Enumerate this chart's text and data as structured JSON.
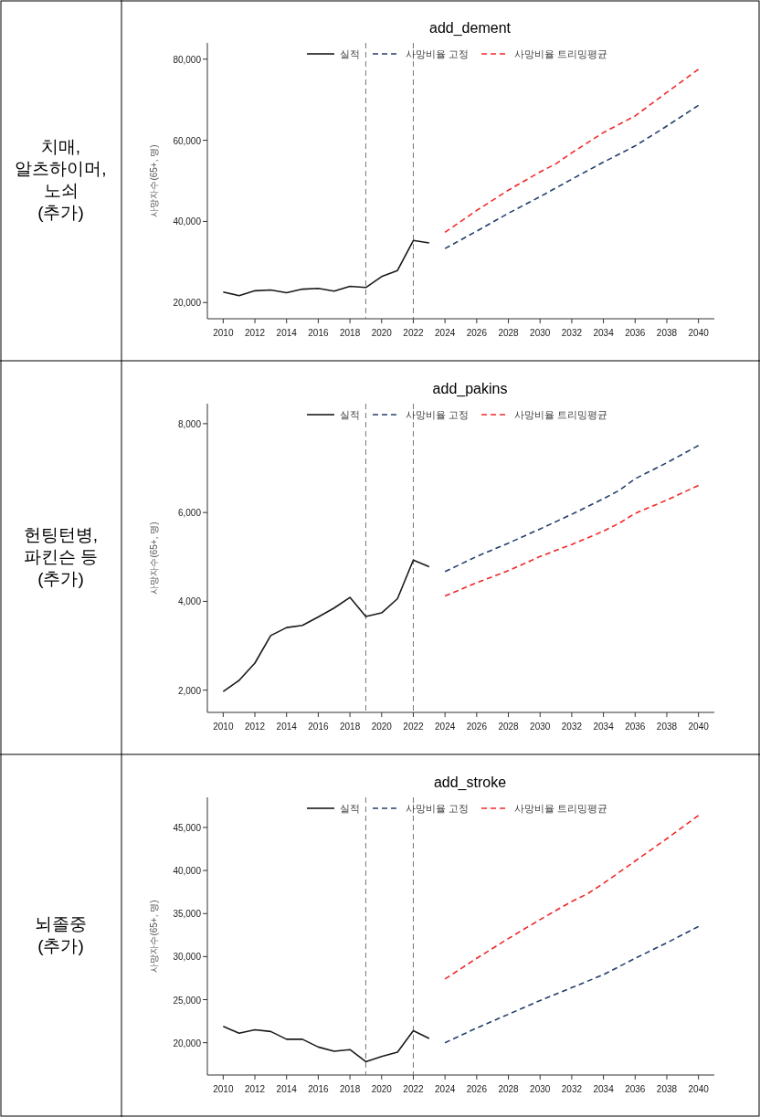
{
  "chart_data": [
    {
      "type": "line",
      "title": "add_dement",
      "ylabel": "사망자수(65+, 명)",
      "annotations": [
        "치매,\n알츠하이머,\n노쇠\n(추가)"
      ],
      "legend": "top",
      "grid": false,
      "xlim": [
        2009,
        2041
      ],
      "xticks": [
        2010,
        2012,
        2014,
        2016,
        2018,
        2020,
        2022,
        2024,
        2026,
        2028,
        2030,
        2032,
        2034,
        2036,
        2038,
        2040
      ],
      "ylim": [
        16000,
        84000
      ],
      "yticks": [
        {
          "value": 20000,
          "label": "20,000"
        },
        {
          "value": 40000,
          "label": "40,000"
        },
        {
          "value": 60000,
          "label": "60,000"
        },
        {
          "value": 80000,
          "label": "80,000"
        }
      ],
      "ref_lines": [
        {
          "axis": "x",
          "value": 2019,
          "color": "#777777",
          "line_style": "dashed"
        },
        {
          "axis": "x",
          "value": 2022,
          "color": "#777777",
          "line_style": "dashed"
        }
      ],
      "series": [
        {
          "name": "실적",
          "color": "#1a1a1a",
          "line_style": "solid",
          "x": [
            2010,
            2011,
            2012,
            2013,
            2014,
            2015,
            2016,
            2017,
            2018,
            2019,
            2020,
            2021,
            2022,
            2023
          ],
          "values": [
            22600,
            21700,
            22900,
            23100,
            22400,
            23300,
            23500,
            22800,
            24000,
            23700,
            26400,
            27900,
            35300,
            34700
          ]
        },
        {
          "name": "사망비율 고정",
          "color": "#243f6b",
          "line_style": "dashed",
          "x": [
            2024,
            2026,
            2028,
            2030,
            2032,
            2034,
            2036,
            2038,
            2040
          ],
          "values": [
            33300,
            37600,
            42000,
            46100,
            50400,
            54600,
            58600,
            63500,
            68600
          ]
        },
        {
          "name": "사망비율 트리밍평균",
          "color": "#f02828",
          "line_style": "dashed",
          "x": [
            2024,
            2026,
            2028,
            2030,
            2031,
            2032,
            2034,
            2036,
            2038,
            2040
          ],
          "values": [
            37300,
            42700,
            47700,
            52200,
            54200,
            56900,
            61900,
            66000,
            71800,
            77500
          ]
        }
      ]
    },
    {
      "type": "line",
      "title": "add_pakins",
      "ylabel": "사망자수(65+, 명)",
      "annotations": [
        "헌팅턴병,\n파킨슨 등\n(추가)"
      ],
      "legend": "top",
      "grid": false,
      "xlim": [
        2009,
        2041
      ],
      "xticks": [
        2010,
        2012,
        2014,
        2016,
        2018,
        2020,
        2022,
        2024,
        2026,
        2028,
        2030,
        2032,
        2034,
        2036,
        2038,
        2040
      ],
      "ylim": [
        1500,
        8450
      ],
      "yticks": [
        {
          "value": 2000,
          "label": "2,000"
        },
        {
          "value": 4000,
          "label": "4,000"
        },
        {
          "value": 6000,
          "label": "6,000"
        },
        {
          "value": 8000,
          "label": "8,000"
        }
      ],
      "ref_lines": [
        {
          "axis": "x",
          "value": 2019,
          "color": "#777777",
          "line_style": "dashed"
        },
        {
          "axis": "x",
          "value": 2022,
          "color": "#777777",
          "line_style": "dashed"
        }
      ],
      "series": [
        {
          "name": "실적",
          "color": "#1a1a1a",
          "line_style": "solid",
          "x": [
            2010,
            2011,
            2012,
            2013,
            2014,
            2015,
            2016,
            2017,
            2018,
            2019,
            2020,
            2021,
            2022,
            2023
          ],
          "values": [
            1970,
            2220,
            2610,
            3230,
            3410,
            3460,
            3650,
            3850,
            4090,
            3660,
            3740,
            4060,
            4930,
            4780
          ]
        },
        {
          "name": "사망비율 고정",
          "color": "#243f6b",
          "line_style": "dashed",
          "x": [
            2024,
            2026,
            2028,
            2030,
            2032,
            2034,
            2035,
            2036,
            2038,
            2040
          ],
          "values": [
            4670,
            5010,
            5310,
            5630,
            5960,
            6310,
            6500,
            6760,
            7120,
            7510
          ]
        },
        {
          "name": "사망비율 트리밍평균",
          "color": "#f02828",
          "line_style": "dashed",
          "x": [
            2024,
            2026,
            2028,
            2030,
            2032,
            2034,
            2035,
            2036,
            2038,
            2040
          ],
          "values": [
            4120,
            4420,
            4690,
            5010,
            5280,
            5580,
            5760,
            5980,
            6280,
            6610
          ]
        }
      ]
    },
    {
      "type": "line",
      "title": "add_stroke",
      "ylabel": "사망자수(65+, 명)",
      "annotations": [
        "뇌졸중\n(추가)"
      ],
      "legend": "top",
      "grid": false,
      "xlim": [
        2009,
        2041
      ],
      "xticks": [
        2010,
        2012,
        2014,
        2016,
        2018,
        2020,
        2022,
        2024,
        2026,
        2028,
        2030,
        2032,
        2034,
        2036,
        2038,
        2040
      ],
      "ylim": [
        16250,
        48500
      ],
      "yticks": [
        {
          "value": 20000,
          "label": "20,000"
        },
        {
          "value": 25000,
          "label": "25,000"
        },
        {
          "value": 30000,
          "label": "30,000"
        },
        {
          "value": 35000,
          "label": "35,000"
        },
        {
          "value": 40000,
          "label": "40,000"
        },
        {
          "value": 45000,
          "label": "45,000"
        }
      ],
      "ref_lines": [
        {
          "axis": "x",
          "value": 2019,
          "color": "#777777",
          "line_style": "dashed"
        },
        {
          "axis": "x",
          "value": 2022,
          "color": "#777777",
          "line_style": "dashed"
        }
      ],
      "series": [
        {
          "name": "실적",
          "color": "#1a1a1a",
          "line_style": "solid",
          "x": [
            2010,
            2011,
            2012,
            2013,
            2014,
            2015,
            2016,
            2017,
            2018,
            2019,
            2020,
            2021,
            2022,
            2023
          ],
          "values": [
            21900,
            21100,
            21500,
            21300,
            20400,
            20400,
            19500,
            19000,
            19200,
            17800,
            18400,
            18900,
            21400,
            20500
          ]
        },
        {
          "name": "사망비율 고정",
          "color": "#243f6b",
          "line_style": "dashed",
          "x": [
            2024,
            2026,
            2028,
            2030,
            2032,
            2034,
            2036,
            2038,
            2040
          ],
          "values": [
            20000,
            21700,
            23300,
            24900,
            26400,
            27900,
            29800,
            31600,
            33500
          ]
        },
        {
          "name": "사망비율 트리밍평균",
          "color": "#f02828",
          "line_style": "dashed",
          "x": [
            2024,
            2026,
            2028,
            2030,
            2032,
            2033,
            2034,
            2036,
            2038,
            2040
          ],
          "values": [
            27400,
            29800,
            32100,
            34300,
            36400,
            37300,
            38500,
            41100,
            43700,
            46400
          ]
        }
      ]
    }
  ]
}
